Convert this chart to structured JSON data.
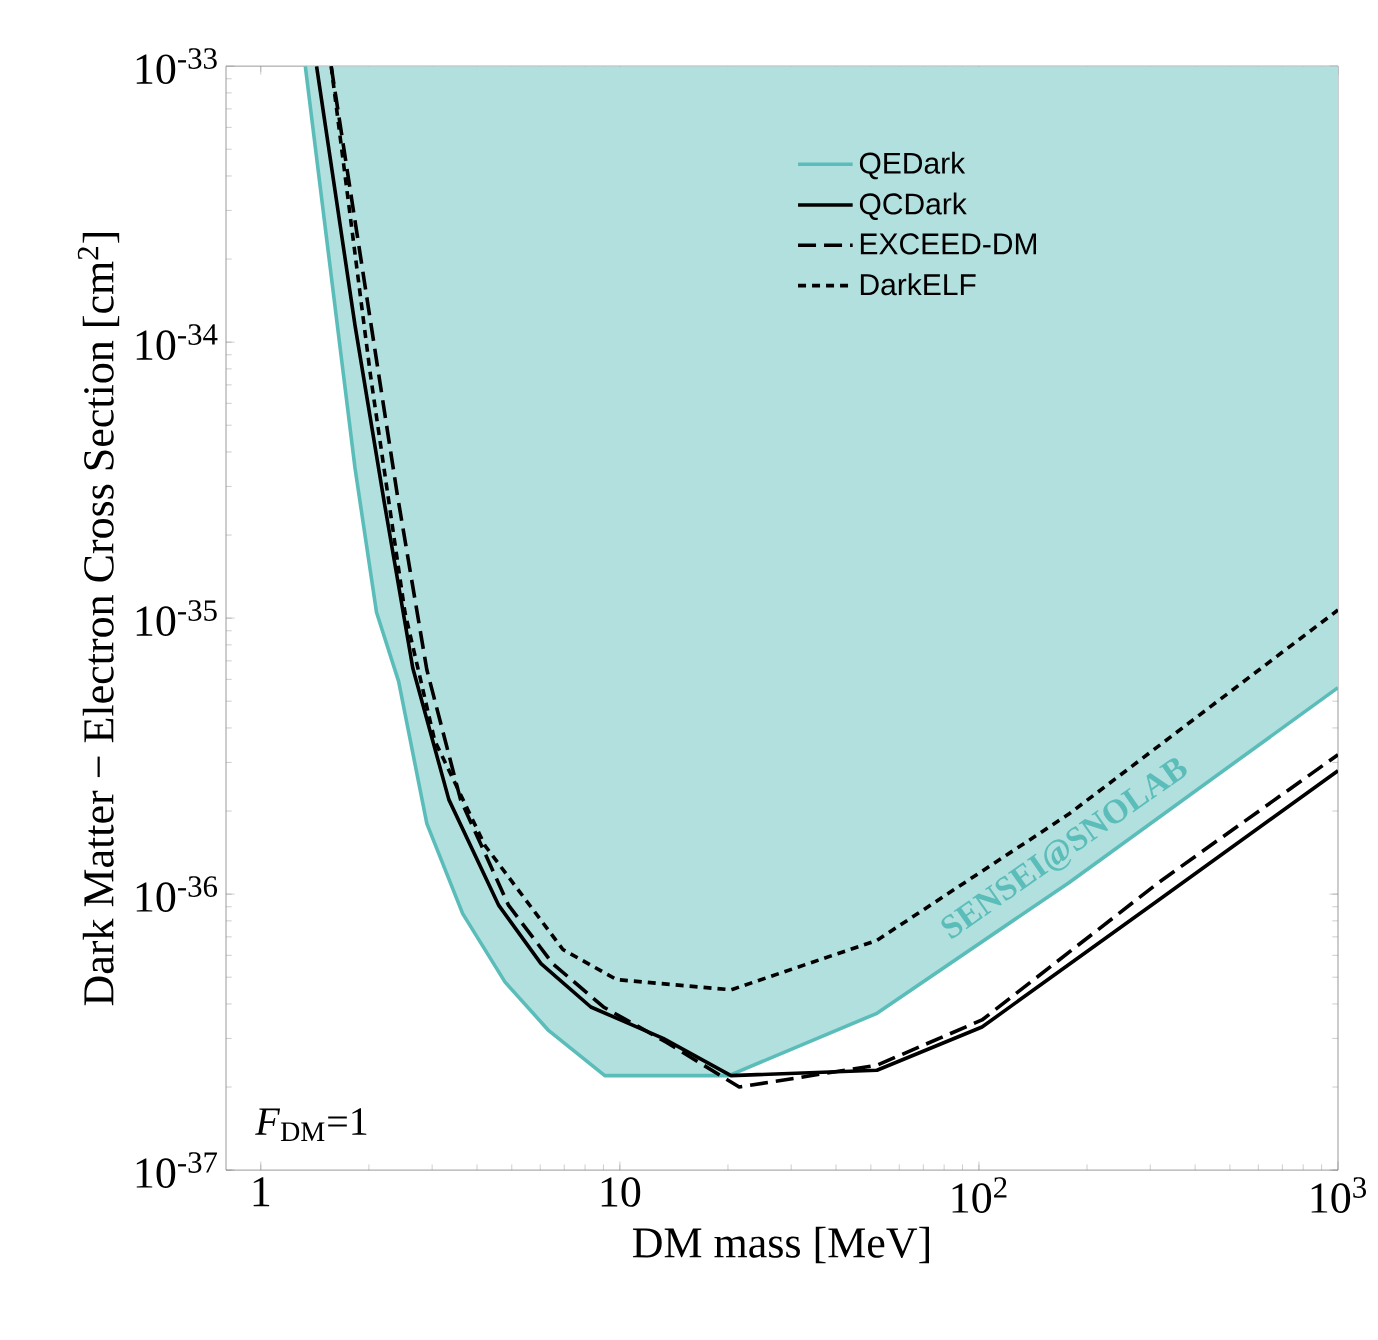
{
  "chart_data": {
    "type": "line",
    "xlabel": "DM mass [MeV]",
    "ylabel": "Dark Matter − Electron Cross Section [cm$^{2}$]",
    "log": "xy",
    "xlim": [
      0.8,
      1000
    ],
    "ylim": [
      1e-37,
      1e-33
    ],
    "xticks": [
      1,
      10,
      {
        "value": 100,
        "label": "10$^{2}$"
      },
      {
        "value": 1000,
        "label": "10$^{3}$"
      }
    ],
    "yticks": [
      {
        "value": 1e-37,
        "label": "10$^{-37}$"
      },
      {
        "value": 1e-36,
        "label": "10$^{-36}$"
      },
      {
        "value": 1e-35,
        "label": "10$^{-35}$"
      },
      {
        "value": 1e-34,
        "label": "10$^{-34}$"
      },
      {
        "value": 1e-33,
        "label": "10$^{-33}$"
      }
    ],
    "legend": "top right",
    "grid": false,
    "marker": "none",
    "series": [
      {
        "name": "QEDark",
        "color": "#5bbdb9",
        "line_style": "solid",
        "x": [
          1.33,
          1.83,
          2.1,
          2.42,
          2.9,
          3.65,
          4.79,
          6.34,
          9.08,
          20.1,
          52,
          178,
          1000
        ],
        "values": [
          1e-33,
          3.5e-35,
          1.05e-35,
          5.9e-36,
          1.8e-36,
          8.5e-37,
          4.8e-37,
          3.2e-37,
          2.2e-37,
          2.2e-37,
          3.7e-37,
          1.1e-36,
          5.6e-36
        ],
        "lower": [
          1e-33,
          3.5e-35,
          1.05e-35,
          5.9e-36,
          1.8e-36,
          8.5e-37,
          4.8e-37,
          3.2e-37,
          2.2e-37,
          2.2e-37,
          3.7e-37,
          1.1e-36,
          5.6e-36
        ],
        "upper": [
          1e-33,
          1e-33,
          1e-33,
          1e-33,
          1e-33,
          1e-33,
          1e-33,
          1e-33,
          1e-33,
          1e-33,
          1e-33,
          1e-33,
          1e-33
        ]
      },
      {
        "name": "QCDark",
        "color": "#000000",
        "line_style": "solid",
        "x": [
          1.43,
          1.83,
          2.21,
          2.65,
          3.34,
          4.6,
          6.03,
          8.3,
          13.2,
          20.4,
          52,
          102,
          316,
          1000
        ],
        "values": [
          1e-33,
          1.15e-34,
          2.6e-35,
          6.6e-36,
          2.2e-36,
          9.1e-37,
          5.6e-37,
          3.9e-37,
          3e-37,
          2.2e-37,
          2.3e-37,
          3.3e-37,
          9.5e-37,
          2.8e-36
        ]
      },
      {
        "name": "EXCEED-DM",
        "color": "#000000",
        "line_style": "dashed",
        "x": [
          1.57,
          2.0,
          2.4,
          2.9,
          3.6,
          4.9,
          6.5,
          9.0,
          13.5,
          21.5,
          52,
          102,
          316,
          1000
        ],
        "values": [
          1e-33,
          1.3e-34,
          2.8e-35,
          6.5e-36,
          2.2e-36,
          9.1e-37,
          5.6e-37,
          3.9e-37,
          2.9e-37,
          2e-37,
          2.4e-37,
          3.5e-37,
          1.1e-36,
          3.2e-36
        ]
      },
      {
        "name": "DarkELF",
        "color": "#000000",
        "line_style": "dotted",
        "x": [
          1.57,
          2.02,
          2.52,
          3.05,
          4.21,
          6.94,
          9.8,
          20.4,
          52,
          178,
          1000
        ],
        "values": [
          1e-33,
          7.6e-35,
          1.05e-35,
          3.6e-36,
          1.5e-36,
          6.3e-37,
          4.9e-37,
          4.5e-37,
          6.8e-37,
          1.95e-36,
          1.07e-35
        ]
      }
    ],
    "annotations": [
      "SENSEI@SNOLAB",
      "*F*$_{DM}$=1"
    ]
  }
}
